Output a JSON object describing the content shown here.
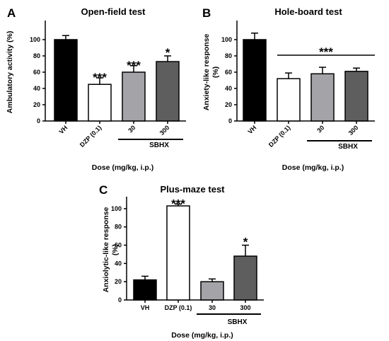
{
  "chart_data": [
    {
      "panel": "A",
      "type": "bar",
      "title": "Open-field test",
      "ylabel": "Ambulatory activity (%)",
      "xlabel": "Dose (mg/kg, i.p.)",
      "ylim": [
        0,
        120
      ],
      "yticks": [
        0,
        20,
        40,
        60,
        80,
        100
      ],
      "categories": [
        "VH",
        "DZP (0.1)",
        "30",
        "300"
      ],
      "values": [
        100,
        45,
        60,
        73
      ],
      "errors": [
        5,
        8,
        8,
        7
      ],
      "fill_colors": [
        "#000000",
        "#ffffff",
        "#a3a3a8",
        "#5e5e5e"
      ],
      "significance": [
        "",
        "***",
        "***",
        "*"
      ],
      "significance_bracket": "",
      "group_label": {
        "text": "SBHX",
        "categories": [
          "30",
          "300"
        ]
      }
    },
    {
      "panel": "B",
      "type": "bar",
      "title": "Hole-board test",
      "ylabel": "Anxiety-like response (%)",
      "xlabel": "Dose (mg/kg, i.p.)",
      "ylim": [
        0,
        120
      ],
      "yticks": [
        0,
        20,
        40,
        60,
        80,
        100
      ],
      "categories": [
        "VH",
        "DZP (0.1)",
        "30",
        "300"
      ],
      "values": [
        100,
        52,
        58,
        61
      ],
      "errors": [
        8,
        7,
        8,
        4
      ],
      "fill_colors": [
        "#000000",
        "#ffffff",
        "#a3a3a8",
        "#5e5e5e"
      ],
      "significance": [
        "",
        "",
        "",
        ""
      ],
      "significance_bracket": "***",
      "group_label": {
        "text": "SBHX",
        "categories": [
          "30",
          "300"
        ]
      }
    },
    {
      "panel": "C",
      "type": "bar",
      "title": "Plus-maze test",
      "ylabel": "Anxiolytic-like response (%)",
      "xlabel": "Dose (mg/kg, i.p.)",
      "ylim": [
        0,
        110
      ],
      "yticks": [
        0,
        20,
        40,
        60,
        80,
        100
      ],
      "categories": [
        "VH",
        "DZP (0.1)",
        "30",
        "300"
      ],
      "values": [
        22,
        103,
        20,
        48
      ],
      "errors": [
        4,
        2,
        3,
        12
      ],
      "fill_colors": [
        "#000000",
        "#ffffff",
        "#a3a3a8",
        "#5e5e5e"
      ],
      "significance": [
        "",
        "***",
        "",
        "*"
      ],
      "significance_bracket": "",
      "group_label": {
        "text": "SBHX",
        "categories": [
          "30",
          "300"
        ]
      }
    }
  ]
}
